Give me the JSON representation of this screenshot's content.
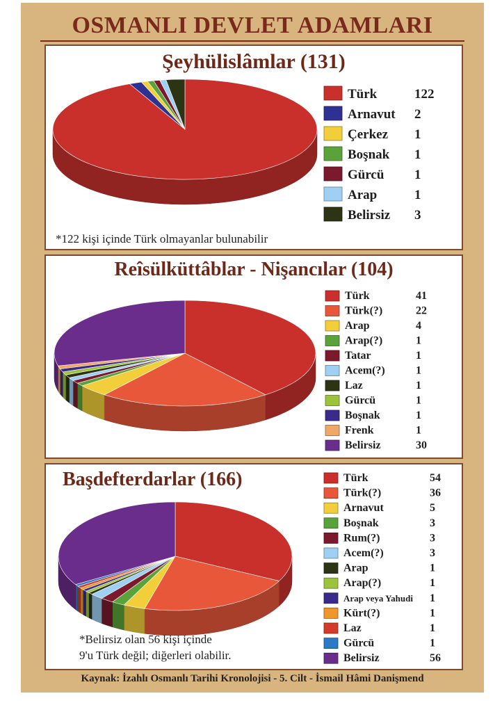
{
  "header": {
    "title": "OSMANLI DEVLET ADAMLARI"
  },
  "footer": {
    "source": "Kaynak: İzahlı Osmanlı Tarihi Kronolojisi - 5. Cilt - İsmail Hâmi Danişmend"
  },
  "notes": {
    "panel1": "*122 kişi içinde Türk olmayanlar bulunabilir",
    "panel3": "*Belirsiz olan 56 kişi içinde\n9'u Türk değil; diğerleri olabilir."
  },
  "chart_data": [
    {
      "type": "pie",
      "title": "Şeyhülislâmlar (131)",
      "legend_position": "right",
      "categories": [
        "Türk",
        "Arnavut",
        "Çerkez",
        "Boşnak",
        "Gürcü",
        "Arap",
        "Belirsiz"
      ],
      "values": [
        122,
        2,
        1,
        1,
        1,
        1,
        3
      ],
      "colors": [
        "#c9302c",
        "#2e3192",
        "#f2cf3a",
        "#5aa33a",
        "#7a1a2c",
        "#9fd0f4",
        "#2d3414"
      ]
    },
    {
      "type": "pie",
      "title": "Reîsülküttâblar - Nişancılar (104)",
      "legend_position": "right",
      "categories": [
        "Türk",
        "Türk(?)",
        "Arap",
        "Arap(?)",
        "Tatar",
        "Acem(?)",
        "Laz",
        "Gürcü",
        "Boşnak",
        "Frenk",
        "Belirsiz"
      ],
      "values": [
        41,
        22,
        4,
        1,
        1,
        1,
        1,
        1,
        1,
        1,
        30
      ],
      "colors": [
        "#c9302c",
        "#e9573a",
        "#f2cf3a",
        "#5aa33a",
        "#7a1a2c",
        "#9fd0f4",
        "#2d3414",
        "#9cc43a",
        "#3a2a8a",
        "#f0a868",
        "#6b2d8b"
      ]
    },
    {
      "type": "pie",
      "title": "Başdefterdarlar (166)",
      "legend_position": "right",
      "categories": [
        "Türk",
        "Türk(?)",
        "Arnavut",
        "Boşnak",
        "Rum(?)",
        "Acem(?)",
        "Arap",
        "Arap(?)",
        "Arap veya Yahudi",
        "Kürt(?)",
        "Laz",
        "Gürcü",
        "Belirsiz"
      ],
      "values": [
        54,
        36,
        5,
        3,
        3,
        3,
        1,
        1,
        1,
        1,
        1,
        1,
        56
      ],
      "colors": [
        "#c9302c",
        "#e9573a",
        "#f2cf3a",
        "#5aa33a",
        "#7a1a2c",
        "#9fd0f4",
        "#2d3414",
        "#9cc43a",
        "#3a2a8a",
        "#f0962a",
        "#d23a2a",
        "#2a7ac8",
        "#6b2d8b"
      ]
    }
  ]
}
